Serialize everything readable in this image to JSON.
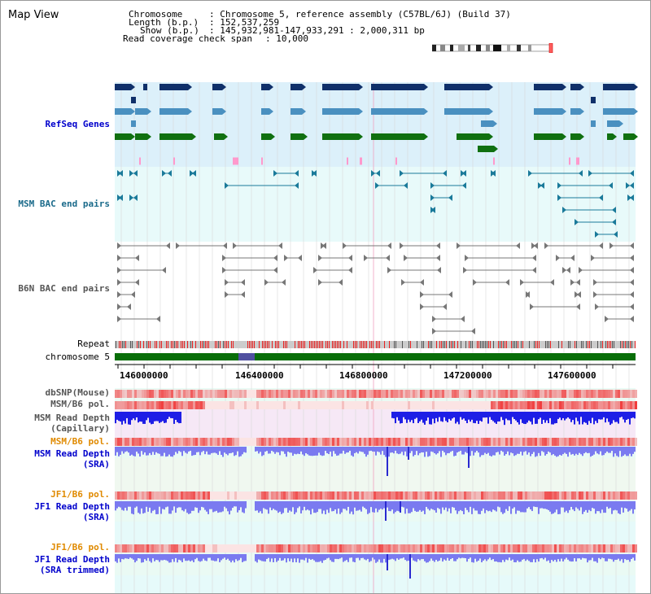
{
  "header": {
    "title": "Map View",
    "chromosome_key": "Chromosome",
    "chromosome_value": ": Chromosome 5, reference assembly (C57BL/6J) (Build 37)",
    "length_key": "Length (b.p.)",
    "length_value": ": 152,537,259",
    "show_key": "Show (b.p.)",
    "show_value": ": 145,932,981-147,933,291 : 2,000,311 bp",
    "coverage_key": "Read coverage check span",
    "coverage_value": ": 10,000"
  },
  "tracks": {
    "refseq": "RefSeq Genes",
    "msm_bac": "MSM BAC end pairs",
    "b6n_bac": "B6N BAC end pairs",
    "repeat": "Repeat",
    "chromosome": "chromosome 5",
    "dbsnp": "dbSNP(Mouse)",
    "msm_b6_pol": "MSM/B6 pol.",
    "msm_depth_cap_1": "MSM Read Depth",
    "msm_depth_cap_2": "(Capillary)",
    "msm_b6_pol2": "MSM/B6 pol.",
    "msm_depth_sra_1": "MSM Read Depth",
    "msm_depth_sra_2": "(SRA)",
    "jf1_pol1": "JF1/B6 pol.",
    "jf1_depth_sra_1": "JF1 Read Depth",
    "jf1_depth_sra_2": "(SRA)",
    "jf1_pol2": "JF1/B6 pol.",
    "jf1_depth_trim_1": "JF1 Read Depth",
    "jf1_depth_trim_2": "(SRA trimmed)"
  },
  "axis": {
    "ticks": [
      "146000000",
      "146400000",
      "146800000",
      "147200000",
      "147600000"
    ]
  },
  "colors": {
    "refseq_bg": "#dcf0fa",
    "msm_bac_bg": "#e8fafa",
    "depth_bg": "#eafaf4",
    "gene_navy": "#10306a",
    "gene_steel": "#4a90c0",
    "gene_green": "#107010",
    "gene_pink": "#ff99cc",
    "bac_teal": "#1a7a9a",
    "bac_gray": "#777777",
    "chromosome_green": "#086e08",
    "depth_blue": "#1e1ee6",
    "depth_light": "#7a7af0",
    "pol_red": "#e83030"
  }
}
